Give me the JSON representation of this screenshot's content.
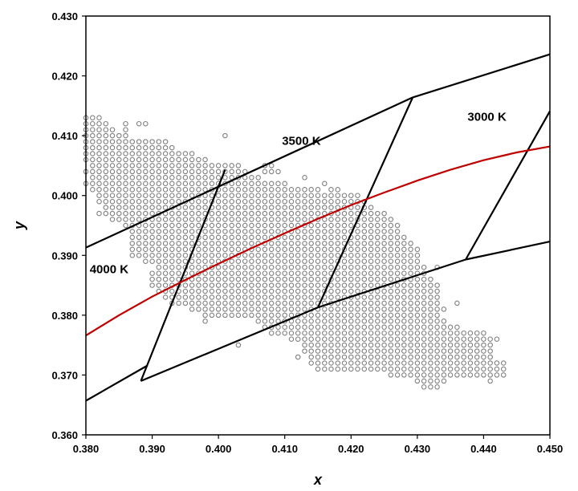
{
  "chart_data": {
    "type": "scatter",
    "title": "",
    "xlabel": "x",
    "ylabel": "y",
    "xlim": [
      0.38,
      0.45
    ],
    "ylim": [
      0.36,
      0.43
    ],
    "xticks": [
      "0.380",
      "0.390",
      "0.400",
      "0.410",
      "0.420",
      "0.430",
      "0.440",
      "0.450"
    ],
    "yticks": [
      "0.360",
      "0.370",
      "0.380",
      "0.390",
      "0.400",
      "0.410",
      "0.420",
      "0.430"
    ],
    "grid": false,
    "legend": "none",
    "colors": {
      "points": "#808080",
      "planckian_locus": "#c00000",
      "quadrangles": "#000000"
    },
    "annotations": [
      {
        "text": "3500 K",
        "x": 0.4125,
        "y": 0.4085
      },
      {
        "text": "3000 K",
        "x": 0.4405,
        "y": 0.4125
      },
      {
        "text": "4000 K",
        "x": 0.3835,
        "y": 0.387
      }
    ],
    "point_cloud": {
      "grid_step": 0.001,
      "rows": [
        {
          "y": 0.413,
          "x_ranges": [
            [
              0.38,
              0.382
            ]
          ]
        },
        {
          "y": 0.412,
          "x_ranges": [
            [
              0.38,
              0.383
            ],
            [
              0.386,
              0.386
            ],
            [
              0.388,
              0.389
            ]
          ]
        },
        {
          "y": 0.411,
          "x_ranges": [
            [
              0.38,
              0.384
            ],
            [
              0.386,
              0.386
            ]
          ]
        },
        {
          "y": 0.41,
          "x_ranges": [
            [
              0.38,
              0.386
            ],
            [
              0.401,
              0.401
            ]
          ]
        },
        {
          "y": 0.409,
          "x_ranges": [
            [
              0.38,
              0.392
            ]
          ]
        },
        {
          "y": 0.408,
          "x_ranges": [
            [
              0.38,
              0.393
            ]
          ]
        },
        {
          "y": 0.407,
          "x_ranges": [
            [
              0.38,
              0.396
            ]
          ]
        },
        {
          "y": 0.406,
          "x_ranges": [
            [
              0.38,
              0.398
            ]
          ]
        },
        {
          "y": 0.405,
          "x_ranges": [
            [
              0.381,
              0.403
            ],
            [
              0.407,
              0.408
            ]
          ]
        },
        {
          "y": 0.404,
          "x_ranges": [
            [
              0.38,
              0.404
            ],
            [
              0.407,
              0.409
            ]
          ]
        },
        {
          "y": 0.403,
          "x_ranges": [
            [
              0.381,
              0.406
            ],
            [
              0.413,
              0.413
            ]
          ]
        },
        {
          "y": 0.402,
          "x_ranges": [
            [
              0.38,
              0.41
            ],
            [
              0.416,
              0.416
            ]
          ]
        },
        {
          "y": 0.401,
          "x_ranges": [
            [
              0.381,
              0.415
            ],
            [
              0.417,
              0.418
            ]
          ]
        },
        {
          "y": 0.4,
          "x_ranges": [
            [
              0.382,
              0.421
            ]
          ]
        },
        {
          "y": 0.399,
          "x_ranges": [
            [
              0.382,
              0.422
            ]
          ]
        },
        {
          "y": 0.398,
          "x_ranges": [
            [
              0.383,
              0.423
            ]
          ]
        },
        {
          "y": 0.397,
          "x_ranges": [
            [
              0.382,
              0.425
            ]
          ]
        },
        {
          "y": 0.396,
          "x_ranges": [
            [
              0.384,
              0.426
            ]
          ]
        },
        {
          "y": 0.395,
          "x_ranges": [
            [
              0.386,
              0.427
            ]
          ]
        },
        {
          "y": 0.394,
          "x_ranges": [
            [
              0.387,
              0.427
            ]
          ]
        },
        {
          "y": 0.393,
          "x_ranges": [
            [
              0.387,
              0.428
            ]
          ]
        },
        {
          "y": 0.392,
          "x_ranges": [
            [
              0.387,
              0.429
            ]
          ]
        },
        {
          "y": 0.391,
          "x_ranges": [
            [
              0.387,
              0.43
            ]
          ]
        },
        {
          "y": 0.39,
          "x_ranges": [
            [
              0.387,
              0.43
            ]
          ]
        },
        {
          "y": 0.389,
          "x_ranges": [
            [
              0.389,
              0.43
            ]
          ]
        },
        {
          "y": 0.388,
          "x_ranges": [
            [
              0.391,
              0.431
            ],
            [
              0.433,
              0.433
            ]
          ]
        },
        {
          "y": 0.387,
          "x_ranges": [
            [
              0.39,
              0.431
            ]
          ]
        },
        {
          "y": 0.386,
          "x_ranges": [
            [
              0.39,
              0.432
            ]
          ]
        },
        {
          "y": 0.385,
          "x_ranges": [
            [
              0.39,
              0.433
            ]
          ]
        },
        {
          "y": 0.384,
          "x_ranges": [
            [
              0.391,
              0.433
            ]
          ]
        },
        {
          "y": 0.383,
          "x_ranges": [
            [
              0.392,
              0.433
            ]
          ]
        },
        {
          "y": 0.382,
          "x_ranges": [
            [
              0.393,
              0.433
            ],
            [
              0.436,
              0.436
            ]
          ]
        },
        {
          "y": 0.381,
          "x_ranges": [
            [
              0.396,
              0.434
            ]
          ]
        },
        {
          "y": 0.38,
          "x_ranges": [
            [
              0.398,
              0.433
            ]
          ]
        },
        {
          "y": 0.379,
          "x_ranges": [
            [
              0.398,
              0.398
            ],
            [
              0.406,
              0.434
            ]
          ]
        },
        {
          "y": 0.378,
          "x_ranges": [
            [
              0.407,
              0.436
            ]
          ]
        },
        {
          "y": 0.377,
          "x_ranges": [
            [
              0.408,
              0.44
            ]
          ]
        },
        {
          "y": 0.376,
          "x_ranges": [
            [
              0.411,
              0.441
            ],
            [
              0.442,
              0.442
            ]
          ]
        },
        {
          "y": 0.375,
          "x_ranges": [
            [
              0.403,
              0.403
            ],
            [
              0.413,
              0.441
            ]
          ]
        },
        {
          "y": 0.374,
          "x_ranges": [
            [
              0.413,
              0.441
            ]
          ]
        },
        {
          "y": 0.373,
          "x_ranges": [
            [
              0.412,
              0.412
            ],
            [
              0.414,
              0.441
            ]
          ]
        },
        {
          "y": 0.372,
          "x_ranges": [
            [
              0.414,
              0.443
            ]
          ]
        },
        {
          "y": 0.371,
          "x_ranges": [
            [
              0.415,
              0.443
            ]
          ]
        },
        {
          "y": 0.37,
          "x_ranges": [
            [
              0.426,
              0.443
            ]
          ]
        },
        {
          "y": 0.369,
          "x_ranges": [
            [
              0.43,
              0.434
            ],
            [
              0.441,
              0.441
            ]
          ]
        },
        {
          "y": 0.368,
          "x_ranges": [
            [
              0.431,
              0.433
            ]
          ]
        }
      ]
    },
    "curves": [
      {
        "name": "",
        "color": "#c00000",
        "x": [
          0.38,
          0.385,
          0.39,
          0.395,
          0.4,
          0.405,
          0.41,
          0.415,
          0.42,
          0.425,
          0.43,
          0.435,
          0.44,
          0.445,
          0.45
        ],
        "y": [
          0.3766,
          0.38,
          0.3831,
          0.3859,
          0.3886,
          0.3912,
          0.3937,
          0.3961,
          0.3984,
          0.4005,
          0.4025,
          0.4043,
          0.4059,
          0.4072,
          0.4082
        ]
      }
    ],
    "quadrangle_lines": [
      {
        "x": [
          0.38,
          0.4293
        ],
        "y": [
          0.3913,
          0.4164
        ]
      },
      {
        "x": [
          0.4293,
          0.45
        ],
        "y": [
          0.4164,
          0.4236
        ]
      },
      {
        "x": [
          0.38,
          0.3893
        ],
        "y": [
          0.3657,
          0.3716
        ]
      },
      {
        "x": [
          0.3883,
          0.415
        ],
        "y": [
          0.369,
          0.3813
        ]
      },
      {
        "x": [
          0.415,
          0.4373
        ],
        "y": [
          0.3813,
          0.3893
        ]
      },
      {
        "x": [
          0.4373,
          0.45
        ],
        "y": [
          0.3893,
          0.3923
        ]
      },
      {
        "x": [
          0.3883,
          0.401
        ],
        "y": [
          0.369,
          0.4043
        ]
      },
      {
        "x": [
          0.415,
          0.4293
        ],
        "y": [
          0.3813,
          0.4164
        ]
      },
      {
        "x": [
          0.4373,
          0.45
        ],
        "y": [
          0.3893,
          0.4141
        ]
      }
    ]
  }
}
